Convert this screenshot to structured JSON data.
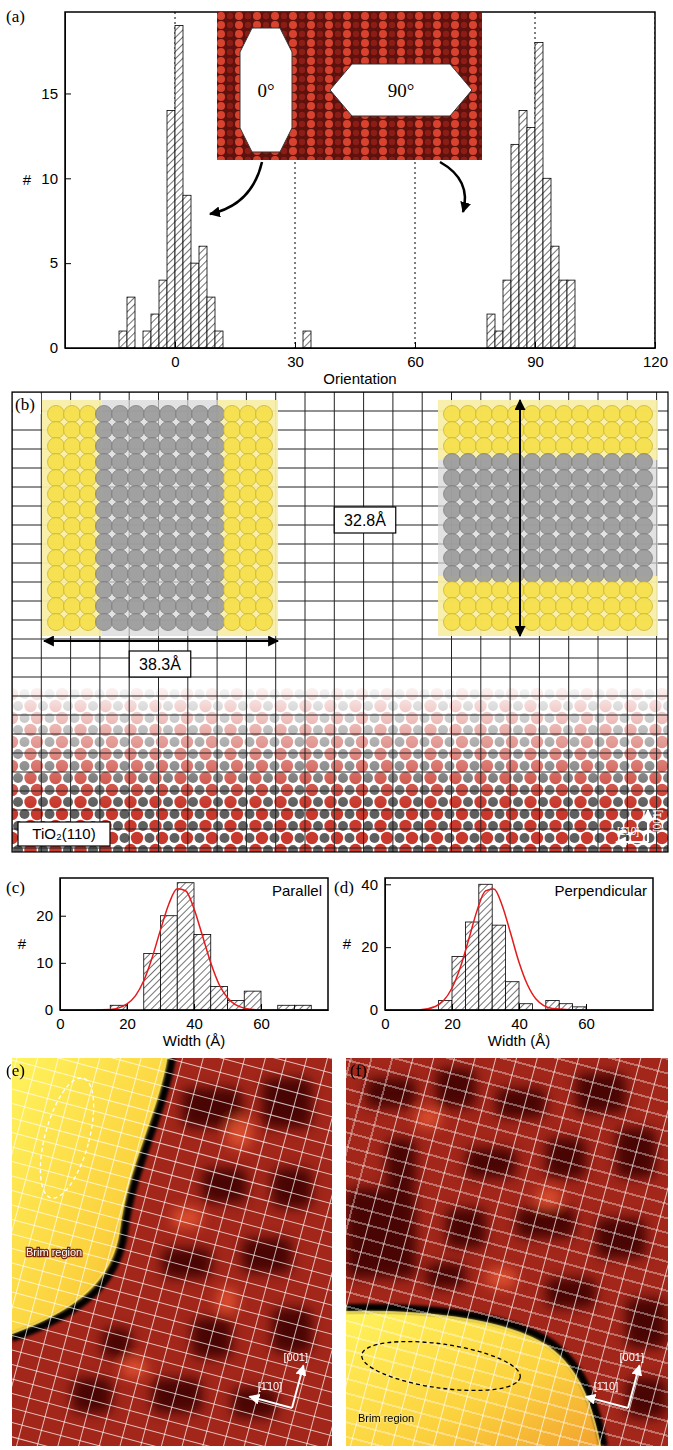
{
  "panel_labels": [
    "(a)",
    "(b)",
    "(c)",
    "(d)",
    "(e)",
    "(f)"
  ],
  "chart_data": [
    {
      "type": "histogram",
      "x_label": "Orientation",
      "y_label": "#",
      "bins": [
        -14,
        -12,
        -10,
        -8,
        -6,
        -4,
        -2,
        0,
        2,
        4,
        6,
        8,
        10,
        12,
        14,
        16,
        18,
        20,
        22,
        24,
        26,
        28,
        30,
        32,
        34,
        36,
        38,
        40,
        42,
        44,
        46,
        48,
        50,
        52,
        54,
        56,
        58,
        60,
        62,
        64,
        66,
        68,
        70,
        72,
        74,
        76,
        78,
        80,
        82,
        84,
        86,
        88,
        90,
        92,
        94,
        96,
        98,
        100
      ],
      "values": [
        1,
        3,
        0,
        1,
        2,
        4,
        14,
        19,
        9,
        5,
        6,
        3,
        1,
        0,
        0,
        0,
        0,
        0,
        0,
        0,
        0,
        0,
        0,
        1,
        0,
        0,
        0,
        0,
        0,
        0,
        0,
        0,
        0,
        0,
        0,
        0,
        0,
        0,
        0,
        0,
        0,
        0,
        0,
        0,
        0,
        0,
        2,
        1,
        4,
        12,
        14,
        13,
        18,
        10,
        6,
        4,
        4
      ],
      "color": "#000000",
      "xlim": [
        -27.5,
        120
      ],
      "ylim": [
        0,
        19.8
      ],
      "xticks": [
        0,
        30,
        60,
        90,
        120
      ],
      "yticks": [
        0,
        5,
        10,
        15
      ],
      "grid": true
    },
    {
      "type": "histogram",
      "title": "Parallel",
      "x_label": "Width (Å)",
      "y_label": "#",
      "bins": [
        15,
        20,
        25,
        30,
        35,
        40,
        45,
        50,
        55,
        60,
        65,
        70,
        75
      ],
      "values": [
        1,
        0,
        12,
        20,
        27,
        16,
        5,
        2,
        4,
        0,
        1,
        1
      ],
      "color": "#000000",
      "series": [
        {
          "type": "line",
          "color": "#e41a1c",
          "x": [
            0,
            10,
            15,
            20,
            22.5,
            25,
            27.5,
            30,
            32.5,
            35,
            37.5,
            40,
            42.5,
            45,
            47.5,
            50,
            55,
            60,
            70,
            80
          ],
          "values": [
            0,
            0,
            0.1,
            1.3,
            3.0,
            6.2,
            11.1,
            17.0,
            22.5,
            25.7,
            25.3,
            21.5,
            15.8,
            10.0,
            5.4,
            2.6,
            0.4,
            0,
            0,
            0
          ]
        }
      ],
      "xlim": [
        0,
        80
      ],
      "ylim": [
        0,
        28
      ],
      "xticks": [
        0,
        20,
        40,
        60
      ],
      "yticks": [
        0,
        10,
        20
      ]
    },
    {
      "type": "histogram",
      "title": "Perpendicular",
      "x_label": "Width (Å)",
      "y_label": "#",
      "bins": [
        16,
        20,
        24,
        28,
        32,
        36,
        40,
        44,
        48,
        52,
        56,
        60
      ],
      "values": [
        3,
        17,
        28,
        40,
        27,
        9,
        2,
        0,
        3,
        2,
        1
      ],
      "color": "#000000",
      "series": [
        {
          "type": "line",
          "color": "#e41a1c",
          "x": [
            0,
            10,
            15,
            17.5,
            20,
            22.5,
            25,
            27.5,
            30,
            32.5,
            35,
            37.5,
            40,
            42.5,
            45,
            50,
            60,
            80
          ],
          "values": [
            0,
            0,
            1.1,
            3.0,
            7.0,
            13.6,
            22.5,
            31.7,
            37.9,
            38.5,
            33.2,
            24.4,
            15.2,
            8.1,
            3.6,
            0.5,
            0,
            0
          ]
        }
      ],
      "xlim": [
        0,
        80
      ],
      "ylim": [
        0,
        42
      ],
      "xticks": [
        0,
        20,
        40,
        60
      ],
      "yticks": [
        0,
        20,
        40
      ]
    }
  ],
  "inset": {
    "labels": [
      "0°",
      "90°"
    ]
  },
  "schematic": {
    "dimensions": [
      "38.3Å",
      "32.8Å"
    ],
    "substrate": "TiO₂(110)",
    "directions": [
      "[001]",
      "[1̄10]"
    ]
  },
  "images": [
    {
      "annotation": "Brim region",
      "directions": [
        "[001]",
        "[1̄10]"
      ]
    },
    {
      "annotation": "Brim region",
      "directions": [
        "[001]",
        "[1̄10]"
      ]
    }
  ]
}
